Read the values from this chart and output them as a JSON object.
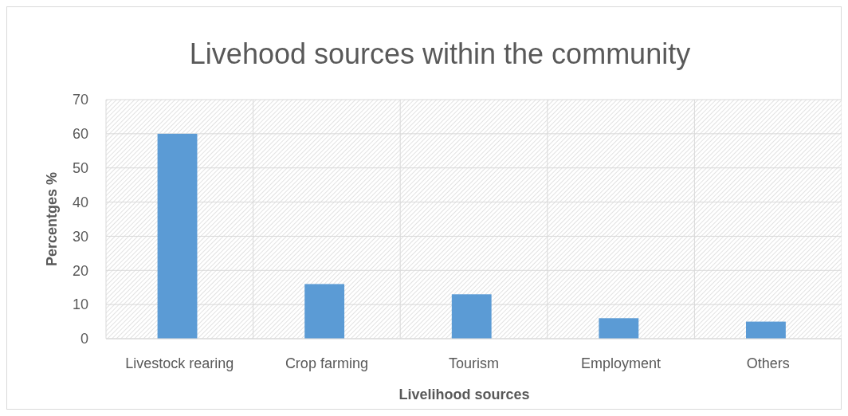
{
  "chart_data": {
    "type": "bar",
    "title": "Livehood sources within the community",
    "xlabel": "Livelihood sources",
    "ylabel": "Percentges %",
    "categories": [
      "Livestock rearing",
      "Crop farming",
      "Tourism",
      "Employment",
      "Others"
    ],
    "values": [
      60,
      16,
      13,
      6,
      5
    ],
    "color": "#5b9bd5",
    "ylim": [
      0,
      70
    ],
    "yticks": [
      0,
      10,
      20,
      30,
      40,
      50,
      60,
      70
    ],
    "grid": true
  }
}
